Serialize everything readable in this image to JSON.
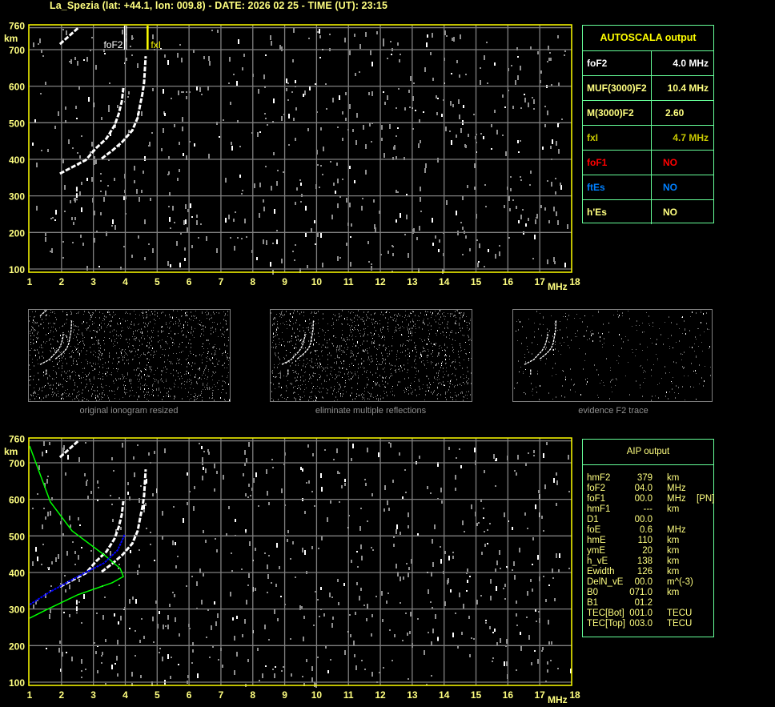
{
  "header": {
    "title": "La_Spezia (lat: +44.1, lon: 009.8) - DATE: 2026 02 25 - TIME (UT): 23:15"
  },
  "colors": {
    "axis": "#ffff00",
    "grid": "#808080",
    "trace": "#ffffff",
    "profile": "#00ff00",
    "aip_points": "#0000ff",
    "table_border": "#66ff99"
  },
  "chart_data": [
    {
      "type": "scatter",
      "xlabel": "MHz",
      "ylabel": "km",
      "xlim": [
        1,
        18
      ],
      "ylim": [
        100,
        760
      ],
      "xticks": [
        "1",
        "2",
        "3",
        "4",
        "5",
        "6",
        "7",
        "8",
        "9",
        "10",
        "11",
        "12",
        "13",
        "14",
        "15",
        "16",
        "17",
        "18"
      ],
      "yticks": [
        "100",
        "200",
        "300",
        "400",
        "500",
        "600",
        "700",
        "760"
      ],
      "grid": true,
      "markers": [
        {
          "label": "foF2",
          "x": 4.0,
          "color": "#ffffff"
        },
        {
          "label": "fxI",
          "x": 4.7,
          "color": "#ffff00"
        }
      ],
      "traces": {
        "o_mode": [
          [
            1.95,
            361
          ],
          [
            2.41,
            382
          ],
          [
            2.76,
            398
          ],
          [
            3.09,
            431
          ],
          [
            3.41,
            457
          ],
          [
            3.66,
            492
          ],
          [
            3.79,
            523
          ],
          [
            3.89,
            558
          ],
          [
            3.94,
            595
          ]
        ],
        "x_mode": [
          [
            3.26,
            402
          ],
          [
            3.59,
            424
          ],
          [
            3.91,
            448
          ],
          [
            4.22,
            479
          ],
          [
            4.39,
            514
          ],
          [
            4.47,
            551
          ],
          [
            4.54,
            580
          ],
          [
            4.59,
            610
          ],
          [
            4.64,
            682
          ]
        ],
        "multiple": [
          [
            1.95,
            715
          ],
          [
            2.53,
            760
          ]
        ],
        "spike": [
          [
            2.48,
            325
          ],
          [
            2.48,
            288
          ]
        ]
      }
    },
    {
      "type": "line",
      "xlabel": "MHz",
      "ylabel": "km",
      "xlim": [
        1,
        18
      ],
      "ylim": [
        100,
        760
      ],
      "xticks": [
        "1",
        "2",
        "3",
        "4",
        "5",
        "6",
        "7",
        "8",
        "9",
        "10",
        "11",
        "12",
        "13",
        "14",
        "15",
        "16",
        "17",
        "18"
      ],
      "yticks": [
        "100",
        "200",
        "300",
        "400",
        "500",
        "600",
        "700",
        "760"
      ],
      "grid": true,
      "profile": [
        [
          1.0,
          746
        ],
        [
          1.65,
          593
        ],
        [
          2.33,
          514
        ],
        [
          3.34,
          448
        ],
        [
          3.84,
          411
        ],
        [
          3.94,
          389
        ],
        [
          3.59,
          372
        ],
        [
          2.51,
          339
        ],
        [
          1.5,
          297
        ],
        [
          1.0,
          275
        ]
      ],
      "aip_points": [
        [
          1.0,
          312
        ],
        [
          1.6,
          345
        ],
        [
          2.51,
          389
        ],
        [
          3.34,
          426
        ],
        [
          3.76,
          461
        ],
        [
          3.99,
          505
        ]
      ]
    }
  ],
  "panels": [
    {
      "label": "original ionogram resized"
    },
    {
      "label": "eliminate multiple reflections"
    },
    {
      "label": "evidence F2 trace"
    }
  ],
  "autoscala": {
    "title": "AUTOSCALA output",
    "rows": [
      {
        "key": "foF2",
        "value": "4.0 MHz",
        "color": "#ffffff"
      },
      {
        "key": "MUF(3000)F2",
        "value": "10.4 MHz",
        "color": "#ffff80"
      },
      {
        "key": "M(3000)F2",
        "value": "2.60",
        "color": "#ffff80"
      },
      {
        "key": "fxI",
        "value": "4.7 MHz",
        "color": "#c8c800"
      },
      {
        "key": "foF1",
        "value": "NO",
        "color": "#ff0000"
      },
      {
        "key": "ftEs",
        "value": "NO",
        "color": "#0080ff"
      },
      {
        "key": "h'Es",
        "value": "NO",
        "color": "#ffff80"
      }
    ]
  },
  "aip": {
    "title": "AIP output",
    "rows": [
      {
        "name": "hmF2",
        "value": "379",
        "unit": "km",
        "extra": ""
      },
      {
        "name": "foF2",
        "value": "04.0",
        "unit": "MHz",
        "extra": ""
      },
      {
        "name": "foF1",
        "value": "00.0",
        "unit": "MHz",
        "extra": "[PN]"
      },
      {
        "name": "hmF1",
        "value": "---",
        "unit": "km",
        "extra": ""
      },
      {
        "name": "D1",
        "value": "00.0",
        "unit": "",
        "extra": ""
      },
      {
        "name": "foE",
        "value": "0.6",
        "unit": "MHz",
        "extra": ""
      },
      {
        "name": "hmE",
        "value": "110",
        "unit": "km",
        "extra": ""
      },
      {
        "name": "ymE",
        "value": "20",
        "unit": "km",
        "extra": ""
      },
      {
        "name": "h_vE",
        "value": "138",
        "unit": "km",
        "extra": ""
      },
      {
        "name": "Ewidth",
        "value": "126",
        "unit": "km",
        "extra": ""
      },
      {
        "name": "DelN_vE",
        "value": "00.0",
        "unit": "m^(-3)",
        "extra": ""
      },
      {
        "name": "B0",
        "value": "071.0",
        "unit": "km",
        "extra": ""
      },
      {
        "name": "B1",
        "value": "01.2",
        "unit": "",
        "extra": ""
      },
      {
        "name": "TEC[Bot]",
        "value": "001.0",
        "unit": "TECU",
        "extra": ""
      },
      {
        "name": "TEC[Top]",
        "value": "003.0",
        "unit": "TECU",
        "extra": ""
      }
    ]
  }
}
